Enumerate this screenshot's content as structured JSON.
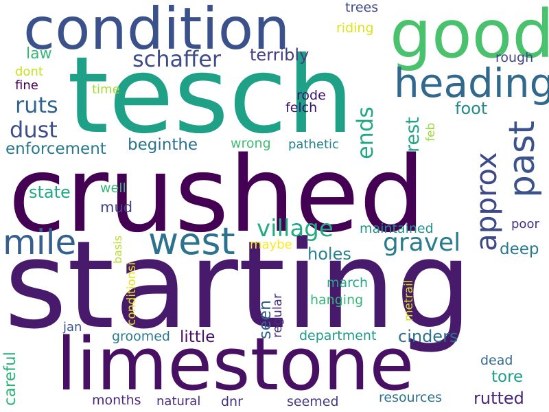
{
  "words": [
    {
      "text": "starting",
      "color": "#481a6c"
    },
    {
      "text": "crushed",
      "color": "#440154"
    },
    {
      "text": "tesch",
      "color": "#1fa187"
    },
    {
      "text": "limestone",
      "color": "#471063"
    },
    {
      "text": "condition",
      "color": "#3b518b"
    },
    {
      "text": "good",
      "color": "#4ac16d"
    },
    {
      "text": "heading",
      "color": "#31688e"
    },
    {
      "text": "west",
      "color": "#2c728e"
    },
    {
      "text": "mile",
      "color": "#355f8d"
    },
    {
      "text": "past",
      "color": "#3b528b"
    },
    {
      "text": "approx",
      "color": "#3e4989"
    },
    {
      "text": "schaffer",
      "color": "#3e4c8a"
    },
    {
      "text": "terribly",
      "color": "#433e85"
    },
    {
      "text": "ruts",
      "color": "#32648e"
    },
    {
      "text": "dust",
      "color": "#3c4f8a"
    },
    {
      "text": "ends",
      "color": "#22a884"
    },
    {
      "text": "village",
      "color": "#25ab82"
    },
    {
      "text": "gravel",
      "color": "#287c8e"
    },
    {
      "text": "enforcement",
      "color": "#2a788e"
    },
    {
      "text": "beginthe",
      "color": "#2c728e"
    },
    {
      "text": "rest",
      "color": "#20a386"
    },
    {
      "text": "foot",
      "color": "#23898e"
    },
    {
      "text": "trees",
      "color": "#3e4989"
    },
    {
      "text": "riding",
      "color": "#dde318"
    },
    {
      "text": "law",
      "color": "#35b779"
    },
    {
      "text": "rough",
      "color": "#414487"
    },
    {
      "text": "dont",
      "color": "#c8e020"
    },
    {
      "text": "fine",
      "color": "#440154"
    },
    {
      "text": "time",
      "color": "#a5db36"
    },
    {
      "text": "rode",
      "color": "#3b0f70"
    },
    {
      "text": "felch",
      "color": "#3b0f70"
    },
    {
      "text": "feb",
      "color": "#9bd93c"
    },
    {
      "text": "wrong",
      "color": "#3fbc73"
    },
    {
      "text": "pathetic",
      "color": "#26828e"
    },
    {
      "text": "state",
      "color": "#22a884"
    },
    {
      "text": "well",
      "color": "#38b977"
    },
    {
      "text": "mud",
      "color": "#414487"
    },
    {
      "text": "maintained",
      "color": "#21918c"
    },
    {
      "text": "poor",
      "color": "#46307e"
    },
    {
      "text": "deep",
      "color": "#2a788e"
    },
    {
      "text": "holes",
      "color": "#26828e"
    },
    {
      "text": "maybe",
      "color": "#fde725"
    },
    {
      "text": "basis",
      "color": "#b5de2b"
    },
    {
      "text": "conditionsi",
      "color": "#e5e419"
    },
    {
      "text": "seen",
      "color": "#33638d"
    },
    {
      "text": "regular",
      "color": "#46327e"
    },
    {
      "text": "march",
      "color": "#22a884"
    },
    {
      "text": "hanging",
      "color": "#35b779"
    },
    {
      "text": "metrail",
      "color": "#d8e219"
    },
    {
      "text": "jan",
      "color": "#39568c"
    },
    {
      "text": "groomed",
      "color": "#2a788e"
    },
    {
      "text": "little",
      "color": "#471063"
    },
    {
      "text": "cinders",
      "color": "#2d708e"
    },
    {
      "text": "department",
      "color": "#1e9b8a"
    },
    {
      "text": "careful",
      "color": "#2db27d"
    },
    {
      "text": "dead",
      "color": "#31688e"
    },
    {
      "text": "tore",
      "color": "#1f9e89"
    },
    {
      "text": "months",
      "color": "#482878"
    },
    {
      "text": "natural",
      "color": "#472c7a"
    },
    {
      "text": "dnr",
      "color": "#46337e"
    },
    {
      "text": "seemed",
      "color": "#443a83"
    },
    {
      "text": "resources",
      "color": "#2c728e"
    },
    {
      "text": "rutted",
      "color": "#482475"
    }
  ]
}
